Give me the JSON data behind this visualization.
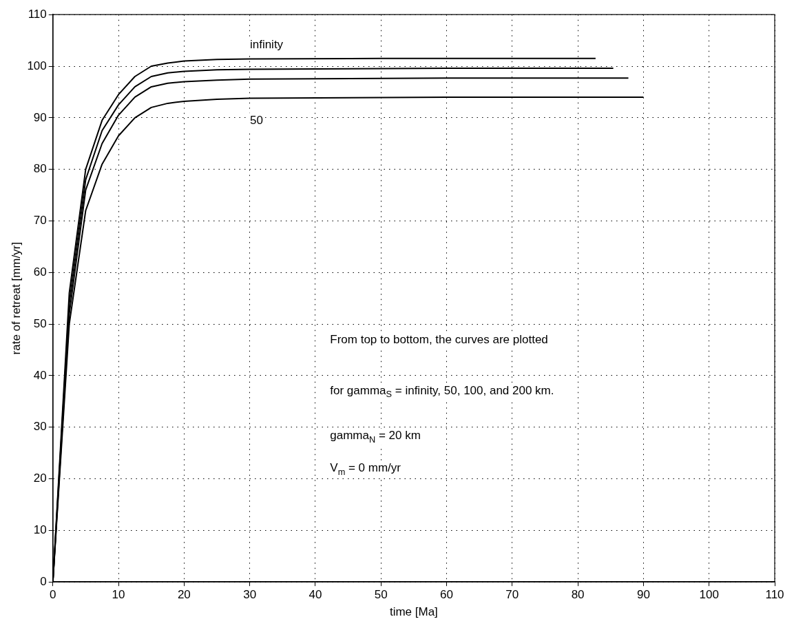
{
  "chart_data": {
    "type": "line",
    "xlabel": "time [Ma]",
    "ylabel": "rate of retreat [mm/yr]",
    "xlim": [
      0,
      110
    ],
    "xticks": [
      0,
      10,
      20,
      30,
      40,
      50,
      60,
      70,
      80,
      90,
      100,
      110
    ],
    "ylim": [
      0,
      110
    ],
    "yticks": [
      0,
      10,
      20,
      30,
      40,
      50,
      60,
      70,
      80,
      90,
      100,
      110
    ],
    "grid": true,
    "legend": false,
    "marker": "none",
    "line_style": "solid",
    "series": [
      {
        "color": "#000000",
        "x": [
          0,
          2.5,
          5,
          7.5,
          10,
          12.5,
          15,
          17.5,
          20,
          25,
          30,
          50,
          82.7
        ],
        "values": [
          0,
          56,
          80,
          89.5,
          94.5,
          98,
          100,
          100.6,
          101,
          101.3,
          101.4,
          101.5,
          101.5
        ]
      },
      {
        "color": "#000000",
        "x": [
          0,
          2.5,
          5,
          7.5,
          10,
          12.5,
          15,
          17.5,
          20,
          25,
          30,
          60,
          85.4
        ],
        "values": [
          0,
          54,
          78,
          87.5,
          92.5,
          96,
          98,
          98.7,
          99,
          99.3,
          99.4,
          99.6,
          99.6
        ]
      },
      {
        "color": "#000000",
        "x": [
          0,
          2.5,
          5,
          7.5,
          10,
          12.5,
          15,
          17.5,
          20,
          25,
          30,
          60,
          87.7
        ],
        "values": [
          0,
          52,
          76,
          85,
          90.5,
          94,
          96,
          96.7,
          97,
          97.3,
          97.5,
          97.7,
          97.7
        ]
      },
      {
        "color": "#000000",
        "x": [
          0,
          2.5,
          5,
          7.5,
          10,
          12.5,
          15,
          17.5,
          20,
          25,
          30,
          60,
          90
        ],
        "values": [
          0,
          50,
          72,
          81,
          86.5,
          90,
          92,
          92.8,
          93.2,
          93.6,
          93.8,
          94,
          94
        ]
      }
    ],
    "annotations": [
      "infinity",
      "50",
      "From top to bottom, the curves are plotted",
      "for gamma$_{S}$ = infinity, 50, 100, and 200 km.",
      "gamma$_{N}$ = 20 km",
      "V$_{m}$ = 0 mm/yr"
    ]
  }
}
